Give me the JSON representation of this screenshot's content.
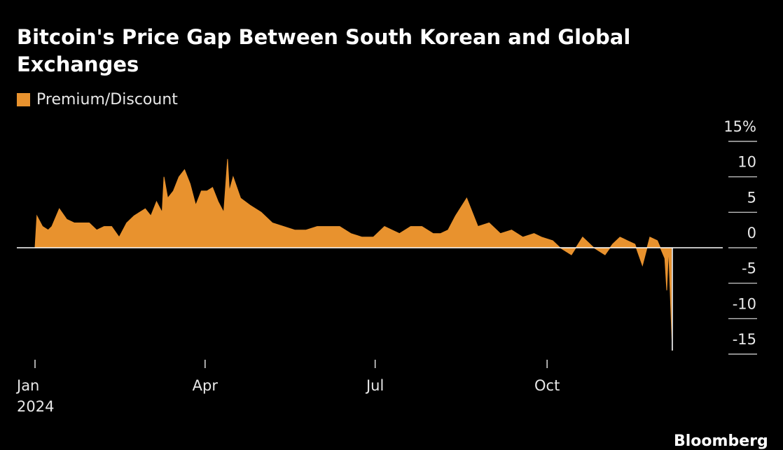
{
  "chart_data": {
    "type": "area",
    "title": "Bitcoin's Price Gap Between South Korean and Global Exchanges",
    "legend": [
      "Premium/Discount"
    ],
    "legend_position": "top-left",
    "xlabel": "",
    "ylabel": "",
    "ylim": [
      -15,
      15
    ],
    "y_ticks": [
      {
        "value": 15,
        "label": "15%"
      },
      {
        "value": 10,
        "label": "10"
      },
      {
        "value": 5,
        "label": "5"
      },
      {
        "value": 0,
        "label": "0"
      },
      {
        "value": -5,
        "label": "-5"
      },
      {
        "value": -10,
        "label": "-10"
      },
      {
        "value": -15,
        "label": "-15"
      }
    ],
    "x_ticks": [
      {
        "value": "2024-01-01",
        "label": "Jan",
        "sublabel": "2024"
      },
      {
        "value": "2024-04-01",
        "label": "Apr"
      },
      {
        "value": "2024-07-01",
        "label": "Jul"
      },
      {
        "value": "2024-10-01",
        "label": "Oct"
      }
    ],
    "grid": false,
    "color": "#e8922e",
    "series": [
      {
        "name": "Premium/Discount",
        "x": [
          "2024-01-01",
          "2024-01-02",
          "2024-01-05",
          "2024-01-08",
          "2024-01-10",
          "2024-01-14",
          "2024-01-18",
          "2024-01-22",
          "2024-01-26",
          "2024-01-30",
          "2024-02-03",
          "2024-02-07",
          "2024-02-11",
          "2024-02-15",
          "2024-02-19",
          "2024-02-23",
          "2024-02-26",
          "2024-02-29",
          "2024-03-03",
          "2024-03-06",
          "2024-03-09",
          "2024-03-10",
          "2024-03-12",
          "2024-03-15",
          "2024-03-18",
          "2024-03-21",
          "2024-03-24",
          "2024-03-27",
          "2024-03-30",
          "2024-04-02",
          "2024-04-05",
          "2024-04-08",
          "2024-04-11",
          "2024-04-13",
          "2024-04-14",
          "2024-04-16",
          "2024-04-20",
          "2024-04-25",
          "2024-05-01",
          "2024-05-07",
          "2024-05-13",
          "2024-05-19",
          "2024-05-25",
          "2024-05-31",
          "2024-06-06",
          "2024-06-12",
          "2024-06-18",
          "2024-06-24",
          "2024-06-30",
          "2024-07-06",
          "2024-07-10",
          "2024-07-14",
          "2024-07-20",
          "2024-07-26",
          "2024-08-01",
          "2024-08-05",
          "2024-08-09",
          "2024-08-13",
          "2024-08-19",
          "2024-08-25",
          "2024-08-31",
          "2024-09-06",
          "2024-09-12",
          "2024-09-18",
          "2024-09-24",
          "2024-09-28",
          "2024-10-04",
          "2024-10-08",
          "2024-10-14",
          "2024-10-20",
          "2024-10-26",
          "2024-11-01",
          "2024-11-05",
          "2024-11-09",
          "2024-11-13",
          "2024-11-17",
          "2024-11-21",
          "2024-11-25",
          "2024-11-29",
          "2024-12-03",
          "2024-12-04",
          "2024-12-05",
          "2024-12-07"
        ],
        "values": [
          0,
          4.5,
          3,
          2.5,
          3,
          5.5,
          4,
          3.5,
          3.5,
          3.5,
          2.5,
          3,
          3,
          1.5,
          3.5,
          4.5,
          5,
          5.5,
          4.5,
          6.5,
          5,
          10,
          7,
          8,
          10,
          11,
          9,
          6,
          8,
          8,
          8.5,
          6.5,
          5,
          12.5,
          8,
          10,
          7,
          6,
          5,
          3.5,
          3,
          2.5,
          2.5,
          3,
          3,
          3,
          2,
          1.5,
          1.5,
          3,
          2.5,
          2,
          3,
          3,
          2,
          2,
          2.5,
          4.5,
          7,
          3,
          3.5,
          2,
          2.5,
          1.5,
          2,
          1.5,
          1,
          0,
          -1,
          1.5,
          0,
          -1,
          0.5,
          1.5,
          1,
          0.5,
          -2.5,
          1.5,
          1,
          -1.5,
          -6,
          0,
          -14.5
        ]
      }
    ]
  },
  "brand": "Bloomberg"
}
